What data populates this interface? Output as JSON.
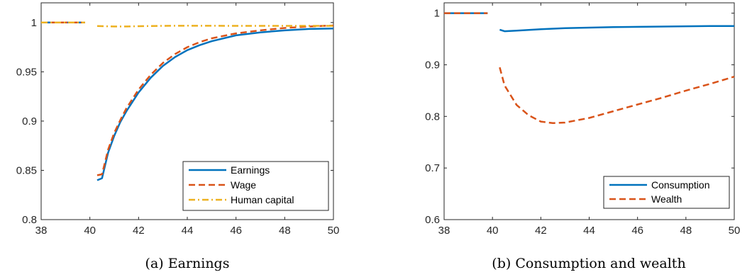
{
  "colors": {
    "blue": "#0072BD",
    "orange": "#D95319",
    "yellow": "#EDB120",
    "axis": "#262626"
  },
  "chart_data": [
    {
      "type": "line",
      "caption": "(a) Earnings",
      "xlim": [
        38,
        50
      ],
      "ylim": [
        0.8,
        1.02
      ],
      "xticks": [
        38,
        40,
        42,
        44,
        46,
        48,
        50
      ],
      "xtick_labels": [
        "38",
        "40",
        "42",
        "44",
        "46",
        "48",
        "50"
      ],
      "yticks": [
        0.8,
        0.85,
        0.9,
        0.95,
        1.0
      ],
      "ytick_labels": [
        "0.8",
        "0.85",
        "0.9",
        "0.95",
        "1"
      ],
      "grid": false,
      "legend_position": "bottom-right",
      "series": [
        {
          "name": "Earnings",
          "color": "#0072BD",
          "style": "solid",
          "segments": [
            [
              [
                38,
                1.0
              ],
              [
                38.5,
                1.0
              ],
              [
                39,
                1.0
              ],
              [
                39.5,
                1.0
              ],
              [
                39.8,
                1.0
              ]
            ],
            [
              [
                40.3,
                0.84
              ],
              [
                40.5,
                0.842
              ],
              [
                40.75,
                0.868
              ],
              [
                41.0,
                0.885
              ],
              [
                41.25,
                0.899
              ],
              [
                41.5,
                0.91
              ],
              [
                42.0,
                0.929
              ],
              [
                42.5,
                0.944
              ],
              [
                43.0,
                0.956
              ],
              [
                43.5,
                0.965
              ],
              [
                44.0,
                0.972
              ],
              [
                44.5,
                0.977
              ],
              [
                45.0,
                0.981
              ],
              [
                46.0,
                0.987
              ],
              [
                47.0,
                0.99
              ],
              [
                48.0,
                0.992
              ],
              [
                49.0,
                0.9935
              ],
              [
                50.0,
                0.994
              ]
            ]
          ]
        },
        {
          "name": "Wage",
          "color": "#D95319",
          "style": "dashed",
          "segments": [
            [
              [
                38,
                1.0
              ],
              [
                39,
                1.0
              ],
              [
                39.8,
                1.0
              ]
            ],
            [
              [
                40.3,
                0.845
              ],
              [
                40.5,
                0.846
              ],
              [
                40.75,
                0.871
              ],
              [
                41.0,
                0.888
              ],
              [
                41.25,
                0.901
              ],
              [
                41.5,
                0.913
              ],
              [
                42.0,
                0.932
              ],
              [
                42.5,
                0.947
              ],
              [
                43.0,
                0.959
              ],
              [
                43.5,
                0.968
              ],
              [
                44.0,
                0.975
              ],
              [
                44.5,
                0.98
              ],
              [
                45.0,
                0.984
              ],
              [
                46.0,
                0.989
              ],
              [
                47.0,
                0.992
              ],
              [
                48.0,
                0.9945
              ],
              [
                49.0,
                0.996
              ],
              [
                50.0,
                0.997
              ]
            ]
          ]
        },
        {
          "name": "Human capital",
          "color": "#EDB120",
          "style": "dashdot",
          "segments": [
            [
              [
                38,
                1.0
              ],
              [
                39,
                1.0
              ],
              [
                39.8,
                1.0
              ]
            ],
            [
              [
                40.3,
                0.9965
              ],
              [
                41.0,
                0.996
              ],
              [
                41.5,
                0.996
              ],
              [
                42.0,
                0.9963
              ],
              [
                43.0,
                0.9966
              ],
              [
                44.0,
                0.9968
              ],
              [
                45.0,
                0.9967
              ],
              [
                46.0,
                0.9966
              ],
              [
                47.0,
                0.9966
              ],
              [
                48.0,
                0.9966
              ],
              [
                49.0,
                0.9966
              ],
              [
                50.0,
                0.9966
              ]
            ]
          ]
        }
      ]
    },
    {
      "type": "line",
      "caption": "(b) Consumption and wealth",
      "xlim": [
        38,
        50
      ],
      "ylim": [
        0.6,
        1.02
      ],
      "xticks": [
        38,
        40,
        42,
        44,
        46,
        48,
        50
      ],
      "xtick_labels": [
        "38",
        "40",
        "42",
        "44",
        "46",
        "48",
        "50"
      ],
      "yticks": [
        0.6,
        0.7,
        0.8,
        0.9,
        1.0
      ],
      "ytick_labels": [
        "0.6",
        "0.7",
        "0.8",
        "0.9",
        "1"
      ],
      "grid": false,
      "legend_position": "bottom-right",
      "series": [
        {
          "name": "Consumption",
          "color": "#0072BD",
          "style": "solid",
          "segments": [
            [
              [
                38,
                1.0
              ],
              [
                39,
                1.0
              ],
              [
                39.8,
                1.0
              ]
            ],
            [
              [
                40.3,
                0.968
              ],
              [
                40.5,
                0.965
              ],
              [
                41.0,
                0.966
              ],
              [
                42.0,
                0.969
              ],
              [
                43.0,
                0.971
              ],
              [
                44.0,
                0.972
              ],
              [
                45.0,
                0.973
              ],
              [
                46.0,
                0.9735
              ],
              [
                47.0,
                0.974
              ],
              [
                48.0,
                0.9745
              ],
              [
                49.0,
                0.975
              ],
              [
                50.0,
                0.975
              ]
            ]
          ]
        },
        {
          "name": "Wealth",
          "color": "#D95319",
          "style": "dashed",
          "segments": [
            [
              [
                38,
                1.0
              ],
              [
                39,
                1.0
              ],
              [
                39.8,
                1.0
              ]
            ],
            [
              [
                40.3,
                0.895
              ],
              [
                40.5,
                0.86
              ],
              [
                41.0,
                0.822
              ],
              [
                41.5,
                0.802
              ],
              [
                42.0,
                0.79
              ],
              [
                42.5,
                0.787
              ],
              [
                43.0,
                0.788
              ],
              [
                44.0,
                0.797
              ],
              [
                45.0,
                0.81
              ],
              [
                46.0,
                0.823
              ],
              [
                47.0,
                0.836
              ],
              [
                48.0,
                0.85
              ],
              [
                49.0,
                0.863
              ],
              [
                50.0,
                0.877
              ]
            ]
          ]
        }
      ]
    }
  ]
}
